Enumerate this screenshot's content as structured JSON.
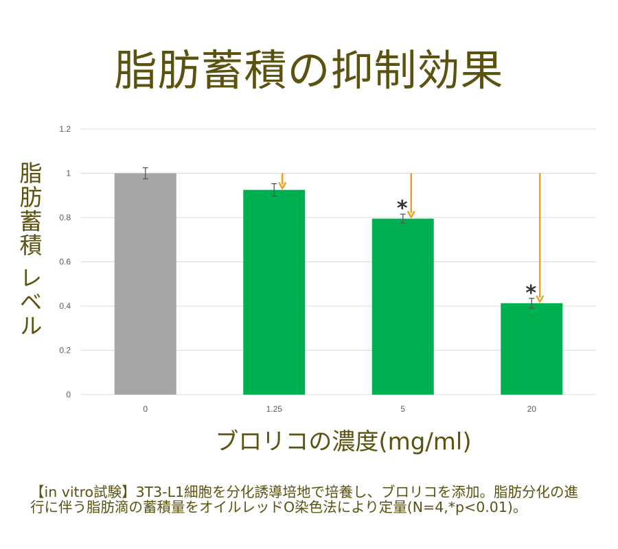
{
  "title": "脂肪蓄積の抑制効果",
  "chart_data": {
    "type": "bar",
    "categories": [
      "0",
      "1.25",
      "5",
      "20"
    ],
    "values": [
      1.0,
      0.925,
      0.795,
      0.413
    ],
    "errors": [
      0.025,
      0.028,
      0.02,
      0.022
    ],
    "significant": [
      false,
      false,
      true,
      true
    ],
    "significance_marker": "*",
    "bar_colors": [
      "#a6a6a6",
      "#00b050",
      "#00b050",
      "#00b050"
    ],
    "arrow_color": "#f0a020",
    "ylim": [
      0,
      1.2
    ],
    "yticks": [
      "0",
      "0.2",
      "0.4",
      "0.6",
      "0.8",
      "1",
      "1.2"
    ],
    "grid": true,
    "xlabel": "ブロリコの濃度(mg/ml)",
    "ylabel": "脂肪蓄積 レベル"
  },
  "note": "【in vitro試験】3T3-L1細胞を分化誘導培地で培養し、ブロリコを添加。脂肪分化の進行に伴う脂肪滴の蓄積量をオイルレッドO染色法により定量(N=4,*p<0.01)。"
}
